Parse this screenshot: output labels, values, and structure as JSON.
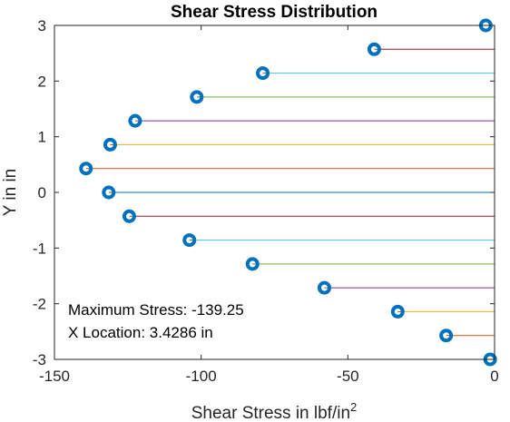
{
  "chart_data": {
    "type": "scatter",
    "title": "Shear Stress Distribution",
    "xlabel": "Shear Stress in lbf/in",
    "xlabel_superscript": "2",
    "ylabel": "Y in in",
    "xlim": [
      -150,
      0
    ],
    "ylim": [
      -3,
      3
    ],
    "x_ticks": [
      -150,
      -100,
      -50,
      0
    ],
    "y_ticks": [
      -3,
      -2,
      -1,
      0,
      1,
      2,
      3
    ],
    "x_tick_labels": [
      "-150",
      "-100",
      "-50",
      "0"
    ],
    "y_tick_labels": [
      "-3",
      "-2",
      "-1",
      "0",
      "1",
      "2",
      "3"
    ],
    "grid": false,
    "box": true,
    "line_colors": [
      "#0072BD",
      "#D95319",
      "#EDB120",
      "#7E2F8E",
      "#77AC30",
      "#4DBEEE",
      "#A2142F"
    ],
    "marker_color": "#0072BD",
    "points": [
      {
        "x": -3,
        "y": 3.0
      },
      {
        "x": -41,
        "y": 2.571
      },
      {
        "x": -79,
        "y": 2.143
      },
      {
        "x": -101.5,
        "y": 1.714
      },
      {
        "x": -122.5,
        "y": 1.286
      },
      {
        "x": -131,
        "y": 0.857
      },
      {
        "x": -139.25,
        "y": 0.429
      },
      {
        "x": -131.5,
        "y": 0.0
      },
      {
        "x": -124.5,
        "y": -0.429
      },
      {
        "x": -104,
        "y": -0.857
      },
      {
        "x": -82.5,
        "y": -1.286
      },
      {
        "x": -58,
        "y": -1.714
      },
      {
        "x": -33,
        "y": -2.143
      },
      {
        "x": -16.5,
        "y": -2.571
      },
      {
        "x": -1.5,
        "y": -3.0
      }
    ],
    "annotation": {
      "line1": "Maximum Stress: -139.25",
      "line2": "X Location: 3.4286 in"
    }
  }
}
